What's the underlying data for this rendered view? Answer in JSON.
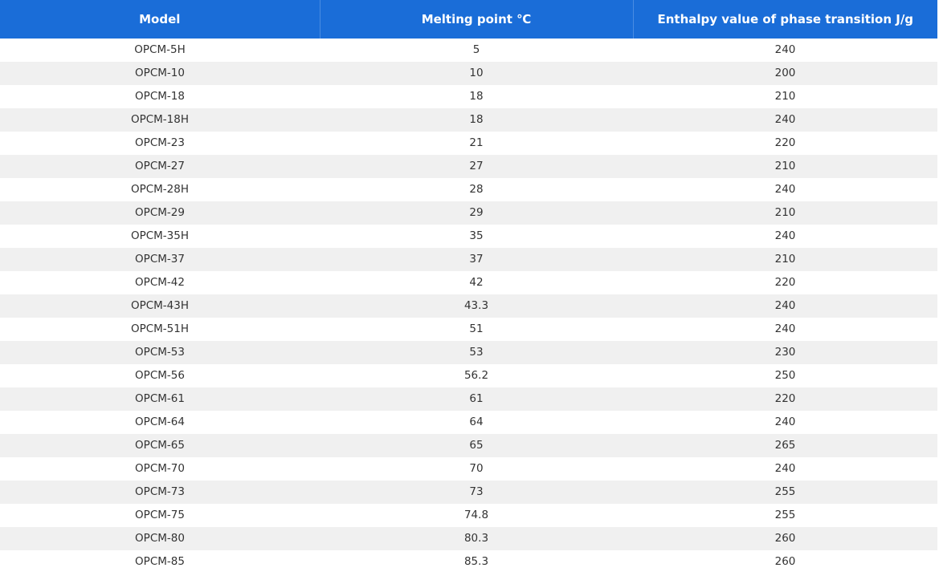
{
  "table": {
    "headers": [
      "Model",
      "Melting point ℃",
      "Enthalpy value of phase transition J/g"
    ],
    "rows": [
      [
        "OPCM-5H",
        "5",
        "240"
      ],
      [
        "OPCM-10",
        "10",
        "200"
      ],
      [
        "OPCM-18",
        "18",
        "210"
      ],
      [
        "OPCM-18H",
        "18",
        "240"
      ],
      [
        "OPCM-23",
        "21",
        "220"
      ],
      [
        "OPCM-27",
        "27",
        "210"
      ],
      [
        "OPCM-28H",
        "28",
        "240"
      ],
      [
        "OPCM-29",
        "29",
        "210"
      ],
      [
        "OPCM-35H",
        "35",
        "240"
      ],
      [
        "OPCM-37",
        "37",
        "210"
      ],
      [
        "OPCM-42",
        "42",
        "220"
      ],
      [
        "OPCM-43H",
        "43.3",
        "240"
      ],
      [
        "OPCM-51H",
        "51",
        "240"
      ],
      [
        "OPCM-53",
        "53",
        "230"
      ],
      [
        "OPCM-56",
        "56.2",
        "250"
      ],
      [
        "OPCM-61",
        "61",
        "220"
      ],
      [
        "OPCM-64",
        "64",
        "240"
      ],
      [
        "OPCM-65",
        "65",
        "265"
      ],
      [
        "OPCM-70",
        "70",
        "240"
      ],
      [
        "OPCM-73",
        "73",
        "255"
      ],
      [
        "OPCM-75",
        "74.8",
        "255"
      ],
      [
        "OPCM-80",
        "80.3",
        "260"
      ],
      [
        "OPCM-85",
        "85.3",
        "260"
      ]
    ]
  },
  "colors": {
    "header_bg": "#1a6dd8",
    "header_text": "#ffffff",
    "row_stripe": "#f0f0f0",
    "row_text": "#333333"
  }
}
